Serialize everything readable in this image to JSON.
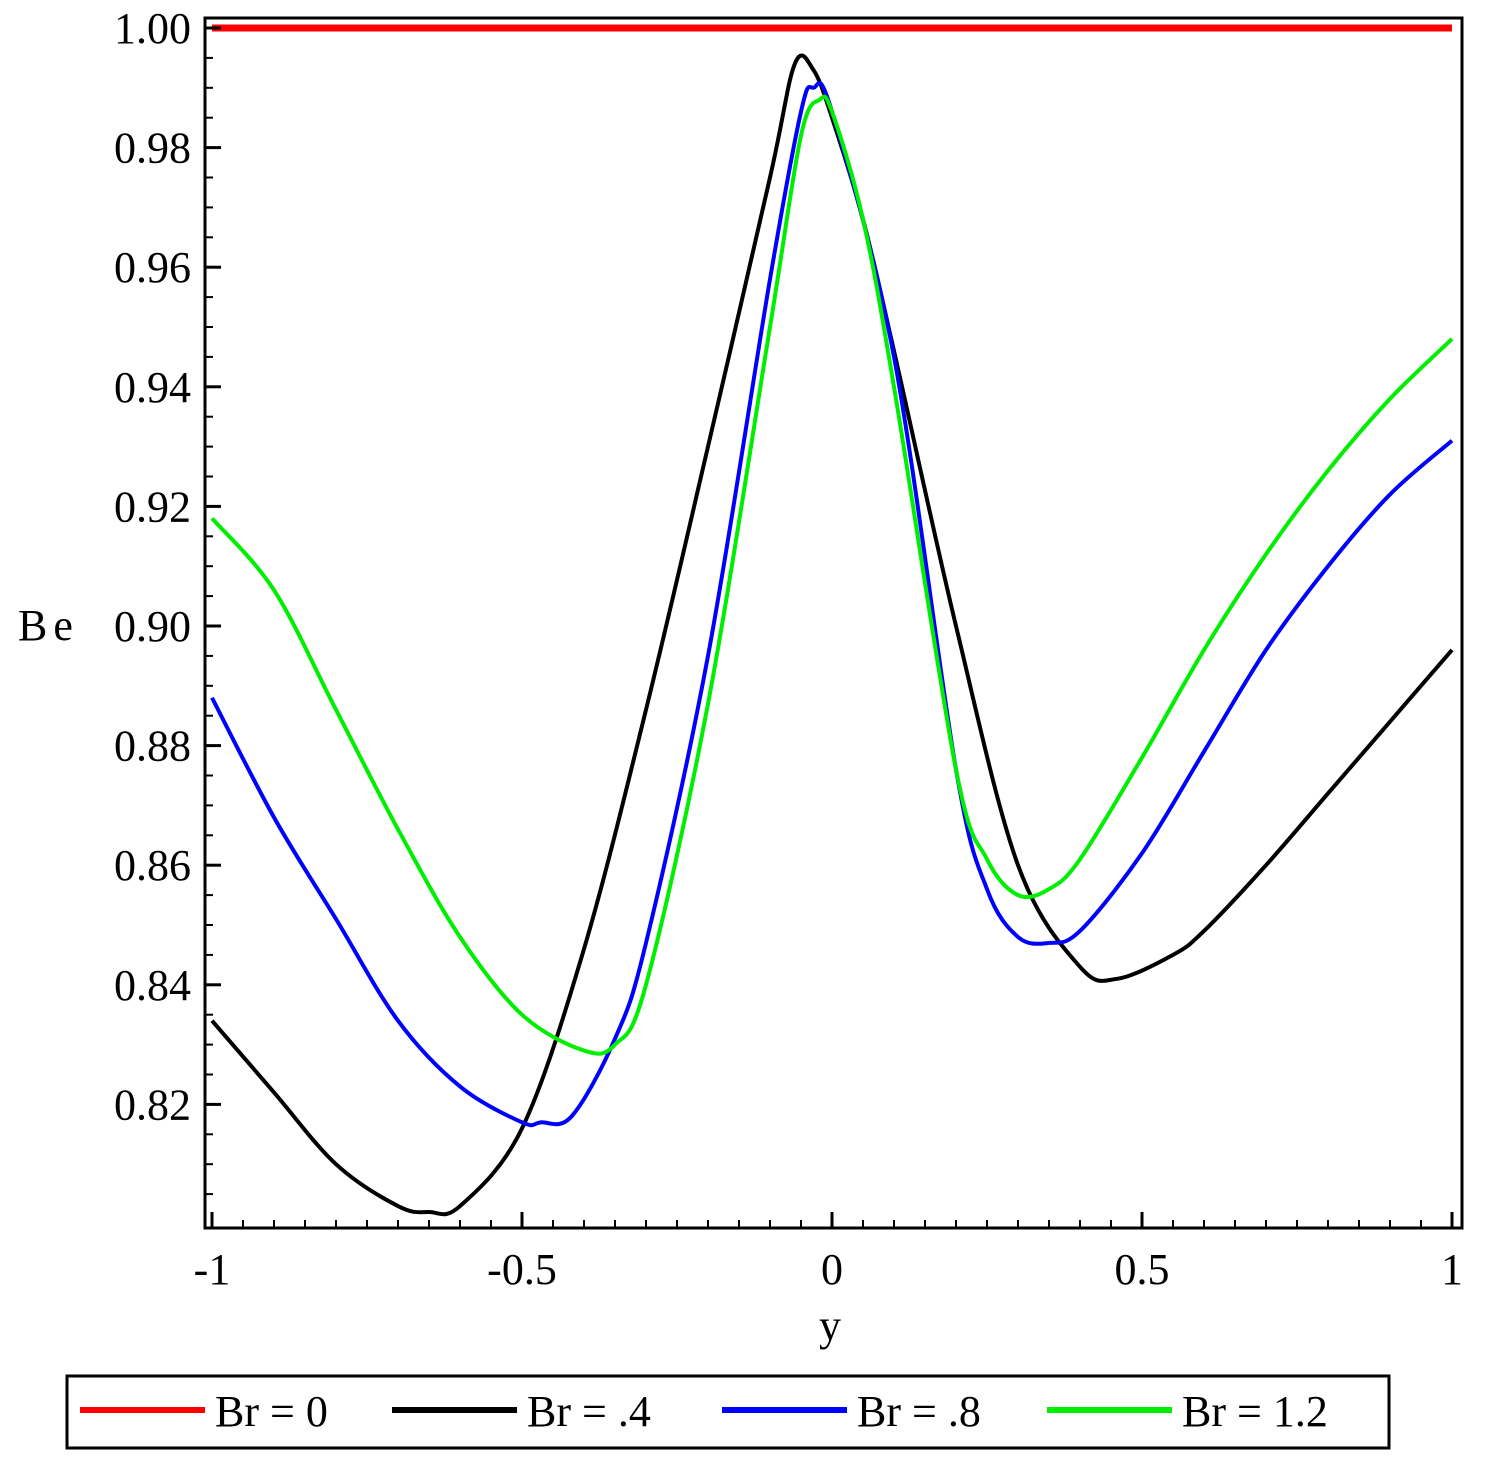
{
  "chart_data": {
    "type": "line",
    "title": "",
    "xlabel": "y",
    "ylabel": "Be",
    "xlim": [
      -1,
      1
    ],
    "ylim": [
      0.8,
      1.0
    ],
    "xticks": [
      -1,
      -0.5,
      0,
      0.5,
      1
    ],
    "xtick_labels": [
      "-1",
      "-0.5",
      "0",
      "0.5",
      "1"
    ],
    "yticks": [
      0.82,
      0.84,
      0.86,
      0.88,
      0.9,
      0.92,
      0.94,
      0.96,
      0.98,
      1.0
    ],
    "ytick_labels": [
      "0.82",
      "0.84",
      "0.86",
      "0.88",
      "0.90",
      "0.92",
      "0.94",
      "0.96",
      "0.98",
      "1.00"
    ],
    "grid": false,
    "legend_position": "bottom",
    "series": [
      {
        "name": "Br = 0",
        "color": "#ff0000",
        "x": [
          -1,
          1
        ],
        "y": [
          1.0,
          1.0
        ]
      },
      {
        "name": "Br = .4",
        "color": "#000000",
        "x": [
          -1,
          -0.9,
          -0.8,
          -0.7,
          -0.65,
          -0.6,
          -0.5,
          -0.4,
          -0.3,
          -0.2,
          -0.1,
          -0.06,
          -0.03,
          0,
          0.05,
          0.1,
          0.2,
          0.3,
          0.4,
          0.46,
          0.55,
          0.6,
          0.7,
          0.8,
          0.9,
          1.0
        ],
        "y": [
          0.834,
          0.822,
          0.81,
          0.803,
          0.802,
          0.803,
          0.816,
          0.846,
          0.886,
          0.93,
          0.975,
          0.994,
          0.993,
          0.985,
          0.968,
          0.946,
          0.9,
          0.86,
          0.843,
          0.841,
          0.845,
          0.849,
          0.86,
          0.872,
          0.884,
          0.896
        ]
      },
      {
        "name": "Br = .8",
        "color": "#0000ff",
        "x": [
          -1,
          -0.9,
          -0.8,
          -0.7,
          -0.6,
          -0.5,
          -0.47,
          -0.42,
          -0.35,
          -0.3,
          -0.2,
          -0.1,
          -0.05,
          -0.03,
          0,
          0.1,
          0.2,
          0.25,
          0.3,
          0.35,
          0.4,
          0.5,
          0.6,
          0.7,
          0.8,
          0.9,
          1.0
        ],
        "y": [
          0.888,
          0.868,
          0.851,
          0.834,
          0.823,
          0.817,
          0.817,
          0.818,
          0.831,
          0.847,
          0.895,
          0.958,
          0.986,
          0.99,
          0.986,
          0.945,
          0.876,
          0.856,
          0.848,
          0.847,
          0.849,
          0.862,
          0.879,
          0.896,
          0.91,
          0.922,
          0.931
        ]
      },
      {
        "name": "Br = 1.2",
        "color": "#00ee00",
        "x": [
          -1,
          -0.9,
          -0.8,
          -0.7,
          -0.6,
          -0.5,
          -0.4,
          -0.35,
          -0.3,
          -0.2,
          -0.1,
          -0.05,
          -0.02,
          0,
          0.05,
          0.1,
          0.2,
          0.25,
          0.3,
          0.35,
          0.4,
          0.5,
          0.6,
          0.7,
          0.8,
          0.9,
          1.0
        ],
        "y": [
          0.918,
          0.906,
          0.886,
          0.866,
          0.848,
          0.835,
          0.829,
          0.83,
          0.84,
          0.887,
          0.95,
          0.982,
          0.988,
          0.986,
          0.968,
          0.94,
          0.876,
          0.861,
          0.855,
          0.856,
          0.861,
          0.878,
          0.896,
          0.912,
          0.926,
          0.938,
          0.948
        ]
      }
    ]
  }
}
